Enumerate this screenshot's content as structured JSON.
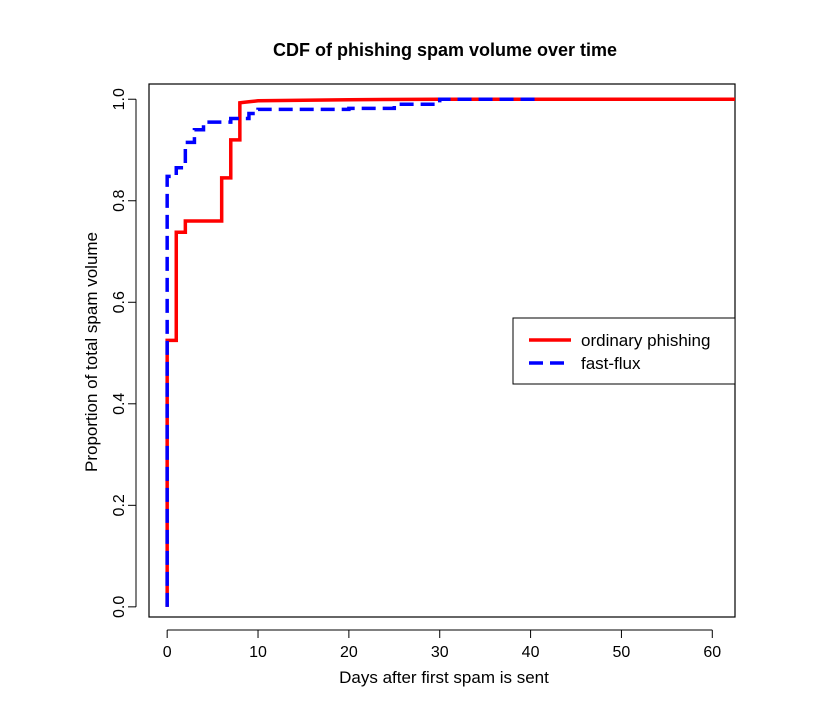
{
  "chart_data": {
    "type": "line",
    "title": "CDF of phishing spam volume over time",
    "xlabel": "Days after first spam is sent",
    "ylabel": "Proportion of total spam volume",
    "xlim": [
      -2,
      62.5
    ],
    "ylim": [
      -0.02,
      1.03
    ],
    "x_ticks": [
      0,
      10,
      20,
      30,
      40,
      50,
      60
    ],
    "y_ticks": [
      "0.0",
      "0.2",
      "0.4",
      "0.6",
      "0.8",
      "1.0"
    ],
    "grid": false,
    "legend_position": "right",
    "series": [
      {
        "name": "ordinary phishing",
        "color": "#ff0000",
        "line_style": "solid",
        "step": true,
        "x": [
          0,
          0,
          1,
          1,
          2,
          2,
          6,
          6,
          7,
          7,
          8,
          8,
          9,
          10,
          20,
          30,
          62.5
        ],
        "y": [
          0.0,
          0.525,
          0.525,
          0.738,
          0.738,
          0.76,
          0.76,
          0.845,
          0.845,
          0.92,
          0.92,
          0.993,
          0.995,
          0.997,
          0.999,
          1.0,
          1.0
        ]
      },
      {
        "name": "fast-flux",
        "color": "#0000ff",
        "line_style": "dashed",
        "step": true,
        "x": [
          0,
          0,
          1,
          1,
          2,
          2,
          3,
          3,
          4,
          4,
          7,
          7,
          9,
          9,
          10,
          10,
          20,
          20,
          25,
          25,
          30,
          30,
          41
        ],
        "y": [
          0.0,
          0.848,
          0.848,
          0.865,
          0.865,
          0.915,
          0.915,
          0.94,
          0.94,
          0.955,
          0.955,
          0.962,
          0.962,
          0.972,
          0.972,
          0.98,
          0.98,
          0.982,
          0.982,
          0.99,
          0.99,
          1.0,
          1.0
        ]
      }
    ]
  }
}
